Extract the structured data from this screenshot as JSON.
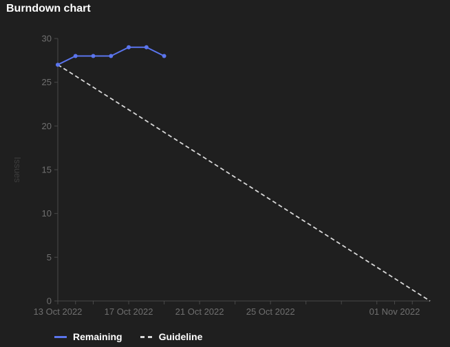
{
  "panel": {
    "title": "Burndown chart"
  },
  "legend": {
    "items": [
      {
        "label": "Remaining",
        "color": "#5b75ee",
        "style": "solid"
      },
      {
        "label": "Guideline",
        "color": "#d9d9d9",
        "style": "dashed"
      }
    ]
  },
  "chart_data": {
    "type": "line",
    "title": "Burndown chart",
    "xlabel": "",
    "ylabel": "Issues",
    "ylim": [
      0,
      30
    ],
    "y_ticks": [
      0,
      5,
      10,
      15,
      20,
      25,
      30
    ],
    "xlim": [
      "2022-10-13",
      "2022-11-03"
    ],
    "x_tick_labels": [
      {
        "date": "2022-10-13",
        "label": "13 Oct 2022"
      },
      {
        "date": "2022-10-17",
        "label": "17 Oct 2022"
      },
      {
        "date": "2022-10-21",
        "label": "21 Oct 2022"
      },
      {
        "date": "2022-10-25",
        "label": "25 Oct 2022"
      },
      {
        "date": "2022-11-01",
        "label": "01 Nov 2022"
      }
    ],
    "x_minor_ticks": [
      "2022-10-14",
      "2022-10-15",
      "2022-10-19",
      "2022-10-23",
      "2022-10-27",
      "2022-10-29",
      "2022-10-31",
      "2022-11-02"
    ],
    "grid": false,
    "legend_position": "bottom-left",
    "series": [
      {
        "name": "Remaining",
        "color": "#5b75ee",
        "style": "solid",
        "markers": true,
        "points": [
          {
            "x": "2022-10-13",
            "y": 27
          },
          {
            "x": "2022-10-14",
            "y": 28
          },
          {
            "x": "2022-10-15",
            "y": 28
          },
          {
            "x": "2022-10-16",
            "y": 28
          },
          {
            "x": "2022-10-17",
            "y": 29
          },
          {
            "x": "2022-10-18",
            "y": 29
          },
          {
            "x": "2022-10-19",
            "y": 28
          }
        ]
      },
      {
        "name": "Guideline",
        "color": "#d9d9d9",
        "style": "dashed",
        "markers": false,
        "points": [
          {
            "x": "2022-10-13",
            "y": 27
          },
          {
            "x": "2022-11-03",
            "y": 0
          }
        ]
      }
    ]
  }
}
